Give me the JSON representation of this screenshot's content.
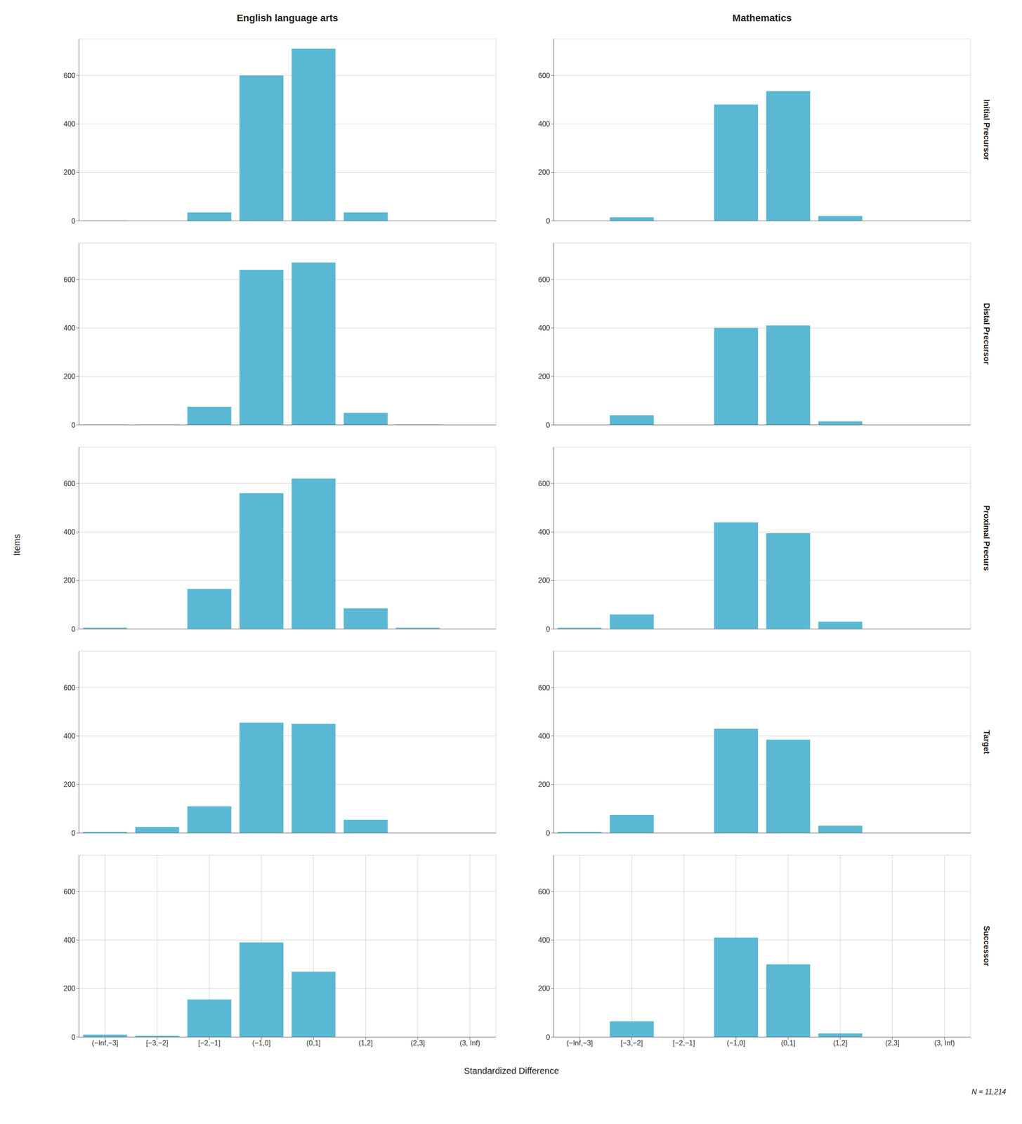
{
  "chart_data": [
    {
      "type": "bar",
      "title": "English language arts",
      "categories": [
        "(−Inf,−3]",
        "[−3,−2]",
        "[−2,−1]",
        "(−1,0]",
        "(0,1]",
        "(1,2]",
        "(2,3]",
        "(3, Inf)"
      ],
      "values": [
        2,
        0,
        35,
        600,
        710,
        35,
        0,
        0
      ],
      "color": "#5BB8D4",
      "ylim": [
        0,
        750
      ],
      "yticks": [
        0,
        200,
        400,
        600
      ],
      "grid": true,
      "tick_labels": "y"
    },
    {
      "type": "bar",
      "title": "Mathematics",
      "annotations": [
        "Initial Precursor"
      ],
      "categories": [
        "(−Inf,−3]",
        "[−3,−2]",
        "[−2,−1]",
        "(−1,0]",
        "(0,1]",
        "(1,2]",
        "(2,3]",
        "(3, Inf)"
      ],
      "values": [
        0,
        15,
        0,
        480,
        535,
        20,
        0,
        0
      ],
      "color": "#5BB8D4",
      "ylim": [
        0,
        750
      ],
      "yticks": [
        0,
        200,
        400,
        600
      ],
      "grid": true,
      "tick_labels": "y"
    },
    {
      "type": "bar",
      "categories": [
        "(−Inf,−3]",
        "[−3,−2]",
        "[−2,−1]",
        "(−1,0]",
        "(0,1]",
        "(1,2]",
        "(2,3]",
        "(3, Inf)"
      ],
      "values": [
        1,
        1,
        75,
        640,
        670,
        50,
        2,
        0
      ],
      "color": "#5BB8D4",
      "ylim": [
        0,
        750
      ],
      "yticks": [
        0,
        200,
        400,
        600
      ],
      "grid": true,
      "tick_labels": "y"
    },
    {
      "type": "bar",
      "annotations": [
        "Distal Precursor"
      ],
      "categories": [
        "(−Inf,−3]",
        "[−3,−2]",
        "[−2,−1]",
        "(−1,0]",
        "(0,1]",
        "(1,2]",
        "(2,3]",
        "(3, Inf)"
      ],
      "values": [
        0,
        40,
        0,
        400,
        410,
        15,
        0,
        0
      ],
      "color": "#5BB8D4",
      "ylim": [
        0,
        750
      ],
      "yticks": [
        0,
        200,
        400,
        600
      ],
      "grid": true,
      "tick_labels": "y"
    },
    {
      "type": "bar",
      "categories": [
        "(−Inf,−3]",
        "[−3,−2]",
        "[−2,−1]",
        "(−1,0]",
        "(0,1]",
        "(1,2]",
        "(2,3]",
        "(3, Inf)"
      ],
      "values": [
        5,
        0,
        165,
        560,
        620,
        85,
        5,
        0
      ],
      "color": "#5BB8D4",
      "ylim": [
        0,
        750
      ],
      "yticks": [
        0,
        200,
        400,
        600
      ],
      "grid": true,
      "tick_labels": "y"
    },
    {
      "type": "bar",
      "annotations": [
        "Proximal Precurs"
      ],
      "categories": [
        "(−Inf,−3]",
        "[−3,−2]",
        "[−2,−1]",
        "(−1,0]",
        "(0,1]",
        "(1,2]",
        "(2,3]",
        "(3, Inf)"
      ],
      "values": [
        5,
        60,
        0,
        440,
        395,
        30,
        0,
        0
      ],
      "color": "#5BB8D4",
      "ylim": [
        0,
        750
      ],
      "yticks": [
        0,
        200,
        400,
        600
      ],
      "grid": true,
      "tick_labels": "y"
    },
    {
      "type": "bar",
      "categories": [
        "(−Inf,−3]",
        "[−3,−2]",
        "[−2,−1]",
        "(−1,0]",
        "(0,1]",
        "(1,2]",
        "(2,3]",
        "(3, Inf)"
      ],
      "values": [
        5,
        25,
        110,
        455,
        450,
        55,
        0,
        0
      ],
      "color": "#5BB8D4",
      "ylim": [
        0,
        750
      ],
      "yticks": [
        0,
        200,
        400,
        600
      ],
      "grid": true,
      "tick_labels": "y"
    },
    {
      "type": "bar",
      "annotations": [
        "Target"
      ],
      "categories": [
        "(−Inf,−3]",
        "[−3,−2]",
        "[−2,−1]",
        "(−1,0]",
        "(0,1]",
        "(1,2]",
        "(2,3]",
        "(3, Inf)"
      ],
      "values": [
        5,
        75,
        0,
        430,
        385,
        30,
        0,
        0
      ],
      "color": "#5BB8D4",
      "ylim": [
        0,
        750
      ],
      "yticks": [
        0,
        200,
        400,
        600
      ],
      "grid": true,
      "tick_labels": "y"
    },
    {
      "type": "bar",
      "categories": [
        "(−Inf,−3]",
        "[−3,−2]",
        "[−2,−1]",
        "(−1,0]",
        "(0,1]",
        "(1,2]",
        "(2,3]",
        "(3, Inf)"
      ],
      "values": [
        10,
        5,
        155,
        390,
        270,
        0,
        0,
        0
      ],
      "color": "#5BB8D4",
      "ylim": [
        0,
        750
      ],
      "yticks": [
        0,
        200,
        400,
        600
      ],
      "grid": true
    },
    {
      "type": "bar",
      "annotations": [
        "Successor"
      ],
      "categories": [
        "(−Inf,−3]",
        "[−3,−2]",
        "[−2,−1]",
        "(−1,0]",
        "(0,1]",
        "(1,2]",
        "(2,3]",
        "(3, Inf)"
      ],
      "values": [
        0,
        65,
        0,
        410,
        300,
        15,
        0,
        0
      ],
      "color": "#5BB8D4",
      "ylim": [
        0,
        750
      ],
      "yticks": [
        0,
        200,
        400,
        600
      ],
      "grid": true
    }
  ],
  "xlabel": "Standardized Difference",
  "ylabel": "Items",
  "annotations": [
    "N = 11,214"
  ]
}
